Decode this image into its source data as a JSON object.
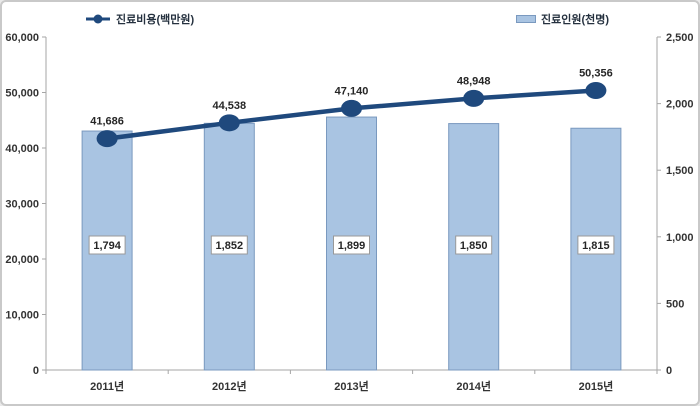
{
  "legend": {
    "line": {
      "label": "진료비용(백만원)"
    },
    "bar": {
      "label": "진료인원(천명)"
    }
  },
  "colors": {
    "line": "#1f497d",
    "bar_fill": "#a9c4e2",
    "bar_border": "#7a99bf",
    "axis": "#a6a6a6",
    "tick_text": "#333333",
    "label_box_border": "#999999"
  },
  "chart_data": {
    "type": "bar",
    "subtype": "combo-bar-line-dual-axis",
    "categories": [
      "2011년",
      "2012년",
      "2013년",
      "2014년",
      "2015년"
    ],
    "series": [
      {
        "name": "진료비용(백만원)",
        "render": "line",
        "axis": "left",
        "values": [
          41686,
          44538,
          47140,
          48948,
          50356
        ],
        "labels": [
          "41,686",
          "44,538",
          "47,140",
          "48,948",
          "50,356"
        ]
      },
      {
        "name": "진료인원(천명)",
        "render": "bar",
        "axis": "right",
        "values": [
          1794,
          1852,
          1899,
          1850,
          1815
        ],
        "labels": [
          "1,794",
          "1,852",
          "1,899",
          "1,850",
          "1,815"
        ]
      }
    ],
    "title": "",
    "xlabel": "",
    "ylabel_left": "진료비용(백만원)",
    "ylabel_right": "진료인원(천명)",
    "axes": {
      "left": {
        "min": 0,
        "max": 60000,
        "step": 10000,
        "tick_labels": [
          "0",
          "10,000",
          "20,000",
          "30,000",
          "40,000",
          "50,000",
          "60,000"
        ]
      },
      "right": {
        "min": 0,
        "max": 2500,
        "step": 500,
        "tick_labels": [
          "0",
          "500",
          "1,000",
          "1,500",
          "2,000",
          "2,500"
        ]
      }
    },
    "grid": false,
    "legend_position": "top"
  }
}
